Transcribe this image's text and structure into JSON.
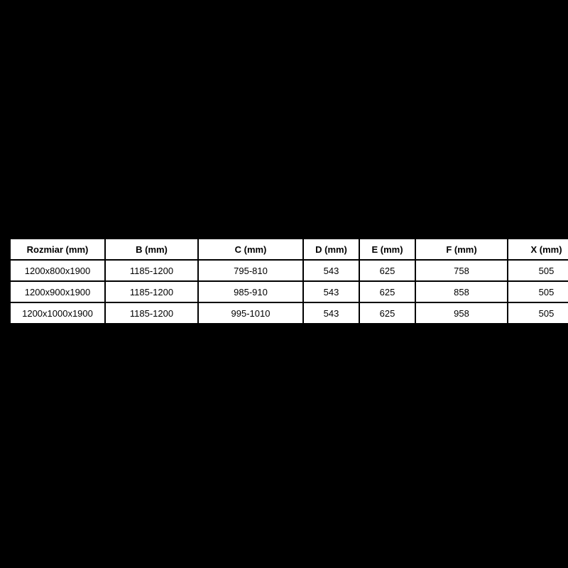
{
  "page": {
    "background_color": "#000000"
  },
  "table": {
    "cell_background": "#ffffff",
    "border_color": "#000000",
    "text_color": "#000000",
    "headers": [
      "Rozmiar (mm)",
      "B (mm)",
      "C (mm)",
      "D (mm)",
      "E (mm)",
      "F (mm)",
      "X (mm)"
    ],
    "rows": [
      [
        "1200x800x1900",
        "1185-1200",
        "795-810",
        "543",
        "625",
        "758",
        "505"
      ],
      [
        "1200x900x1900",
        "1185-1200",
        "985-910",
        "543",
        "625",
        "858",
        "505"
      ],
      [
        "1200x1000x1900",
        "1185-1200",
        "995-1010",
        "543",
        "625",
        "958",
        "505"
      ]
    ]
  },
  "chart_data": {
    "type": "table",
    "title": "",
    "columns": [
      "Rozmiar (mm)",
      "B (mm)",
      "C (mm)",
      "D (mm)",
      "E (mm)",
      "F (mm)",
      "X (mm)"
    ],
    "rows": [
      [
        "1200x800x1900",
        "1185-1200",
        "795-810",
        "543",
        "625",
        "758",
        "505"
      ],
      [
        "1200x900x1900",
        "1185-1200",
        "985-910",
        "543",
        "625",
        "858",
        "505"
      ],
      [
        "1200x1000x1900",
        "1185-1200",
        "995-1010",
        "543",
        "625",
        "958",
        "505"
      ]
    ],
    "layout_hints": {
      "background": "#000000",
      "cell_background": "#ffffff",
      "header_bold": true,
      "grid": "on",
      "position": "vertically-centered, full-width table on black canvas"
    }
  }
}
